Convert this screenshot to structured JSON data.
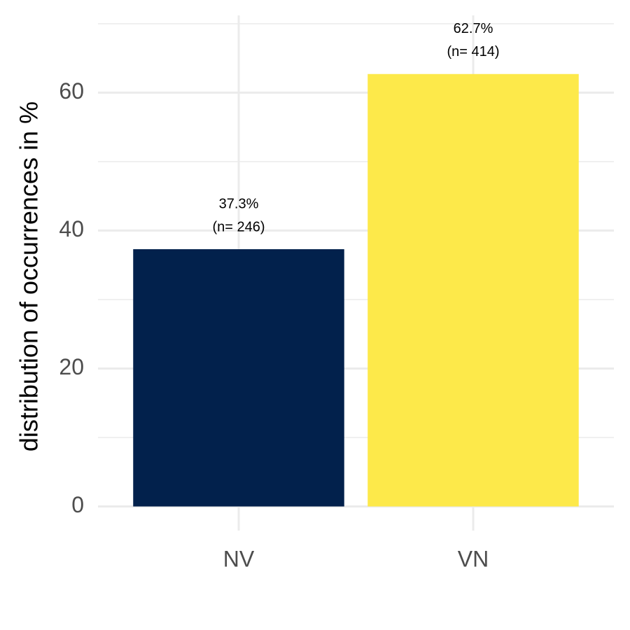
{
  "chart_data": {
    "type": "bar",
    "y_label": "distribution of occurrences in %",
    "categories": [
      "NV",
      "VN"
    ],
    "values": [
      37.3,
      62.7
    ],
    "value_labels": [
      "37.3%",
      "62.7%"
    ],
    "count_labels": [
      "(n= 246)",
      "(n= 414)"
    ],
    "colors": [
      "#02214c",
      "#fde94a"
    ],
    "ylim": [
      -3.5,
      71.2
    ],
    "yticks": [
      0,
      20,
      40,
      60
    ],
    "minor_yticks": [
      10,
      30,
      50,
      70
    ],
    "grid": true
  }
}
